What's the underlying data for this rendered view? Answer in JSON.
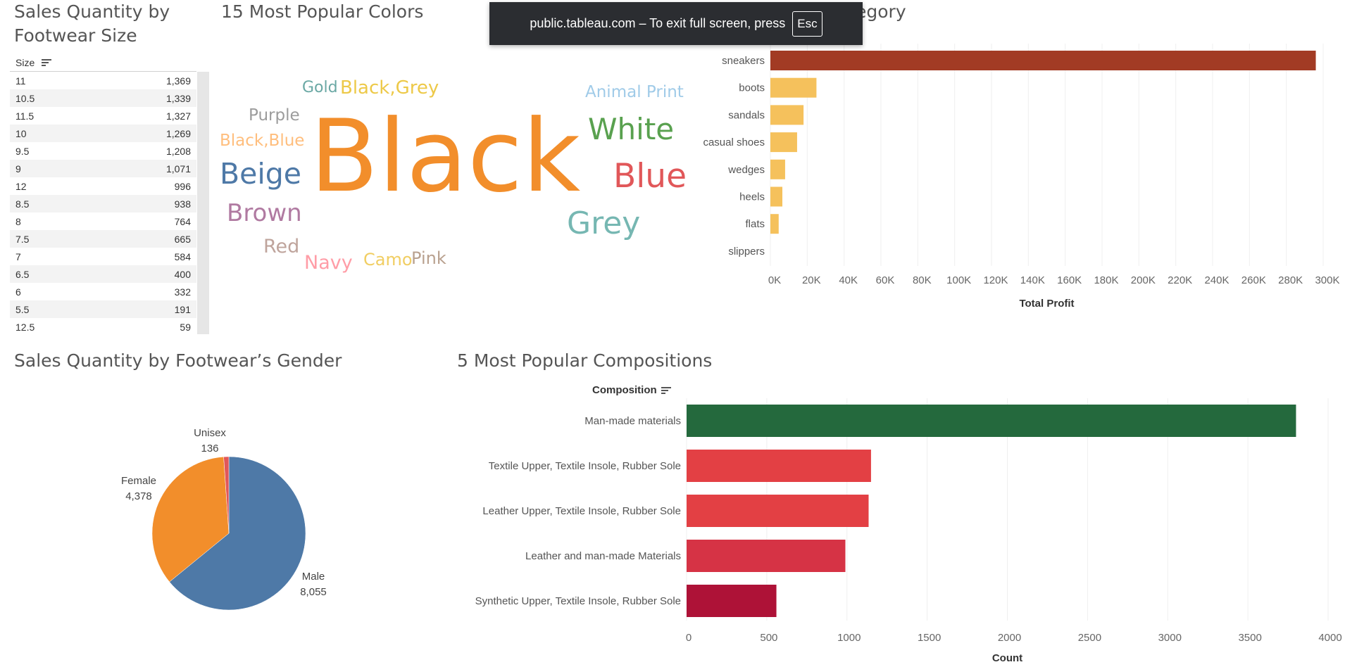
{
  "titles": {
    "size": "Sales Quantity by Footwear Size",
    "colors": "15 Most Popular Colors",
    "category": "egory",
    "gender": "Sales Quantity by Footwear’s Gender",
    "compositions": "5 Most Popular Compositions"
  },
  "banner": {
    "text": "public.tableau.com – To exit full screen, press",
    "key": "Esc"
  },
  "size_table": {
    "header": "Size",
    "rows": [
      {
        "size": "11",
        "qty": "1,369"
      },
      {
        "size": "10.5",
        "qty": "1,339"
      },
      {
        "size": "11.5",
        "qty": "1,327"
      },
      {
        "size": "10",
        "qty": "1,269"
      },
      {
        "size": "9.5",
        "qty": "1,208"
      },
      {
        "size": "9",
        "qty": "1,071"
      },
      {
        "size": "12",
        "qty": "996"
      },
      {
        "size": "8.5",
        "qty": "938"
      },
      {
        "size": "8",
        "qty": "764"
      },
      {
        "size": "7.5",
        "qty": "665"
      },
      {
        "size": "7",
        "qty": "584"
      },
      {
        "size": "6.5",
        "qty": "400"
      },
      {
        "size": "6",
        "qty": "332"
      },
      {
        "size": "5.5",
        "qty": "191"
      },
      {
        "size": "12.5",
        "qty": "59"
      }
    ]
  },
  "word_cloud": {
    "words": [
      {
        "text": "Black",
        "color": "#f28e2b"
      },
      {
        "text": "White",
        "color": "#59a14f"
      },
      {
        "text": "Blue",
        "color": "#e15759"
      },
      {
        "text": "Grey",
        "color": "#76b7b2"
      },
      {
        "text": "Beige",
        "color": "#4e79a7"
      },
      {
        "text": "Brown",
        "color": "#b07aa1"
      },
      {
        "text": "Black,Grey",
        "color": "#edc948"
      },
      {
        "text": "Animal Print",
        "color": "#a0cbe8"
      },
      {
        "text": "Purple",
        "color": "#9c9c9c"
      },
      {
        "text": "Black,Blue",
        "color": "#ffbe7d"
      },
      {
        "text": "Gold",
        "color": "#6aa8a4"
      },
      {
        "text": "Red",
        "color": "#bfa49c"
      },
      {
        "text": "Navy",
        "color": "#ff9da7"
      },
      {
        "text": "Camo",
        "color": "#f1ce63"
      },
      {
        "text": "Pink",
        "color": "#b9a18f"
      }
    ]
  },
  "chart_data": [
    {
      "type": "bar",
      "orientation": "horizontal",
      "categories": [
        "sneakers",
        "boots",
        "sandals",
        "casual shoes",
        "wedges",
        "heels",
        "flats",
        "slippers"
      ],
      "values": [
        296000,
        25000,
        18000,
        14500,
        8000,
        6500,
        4500,
        0
      ],
      "colors": [
        "#a23b24",
        "#f5c15c",
        "#f5c15c",
        "#f5c15c",
        "#f5c15c",
        "#f5c15c",
        "#f5c15c",
        "#f5c15c"
      ],
      "title": "",
      "xlabel": "Total Profit",
      "xlim": [
        0,
        300000
      ],
      "ticks": [
        0,
        20000,
        40000,
        60000,
        80000,
        100000,
        120000,
        140000,
        160000,
        180000,
        200000,
        220000,
        240000,
        260000,
        280000,
        300000
      ],
      "tick_labels": [
        "0K",
        "20K",
        "40K",
        "60K",
        "80K",
        "100K",
        "120K",
        "140K",
        "160K",
        "180K",
        "200K",
        "220K",
        "240K",
        "260K",
        "280K",
        "300K"
      ],
      "grid": true
    },
    {
      "type": "pie",
      "title": "Sales Quantity by Footwear’s Gender",
      "slices": [
        {
          "label": "Male",
          "value": 8055,
          "display": "8,055",
          "color": "#4e79a7"
        },
        {
          "label": "Female",
          "value": 4378,
          "display": "4,378",
          "color": "#f28e2b"
        },
        {
          "label": "Unisex",
          "value": 136,
          "display": "136",
          "color": "#e15759"
        }
      ]
    },
    {
      "type": "bar",
      "orientation": "horizontal",
      "title": "5 Most Popular Compositions",
      "ylabel": "Composition",
      "xlabel": "Count",
      "categories": [
        "Man-made materials",
        "Textile Upper, Textile Insole, Rubber Sole",
        "Leather Upper, Textile Insole, Rubber Sole",
        "Leather and man-made Materials",
        "Synthetic Upper, Textile Insole, Rubber Sole"
      ],
      "values": [
        3800,
        1150,
        1135,
        990,
        560
      ],
      "colors": [
        "#24693d",
        "#e34044",
        "#e34044",
        "#d63345",
        "#ae1237"
      ],
      "xlim": [
        0,
        4000
      ],
      "ticks": [
        0,
        500,
        1000,
        1500,
        2000,
        2500,
        3000,
        3500,
        4000
      ],
      "grid": true
    }
  ]
}
